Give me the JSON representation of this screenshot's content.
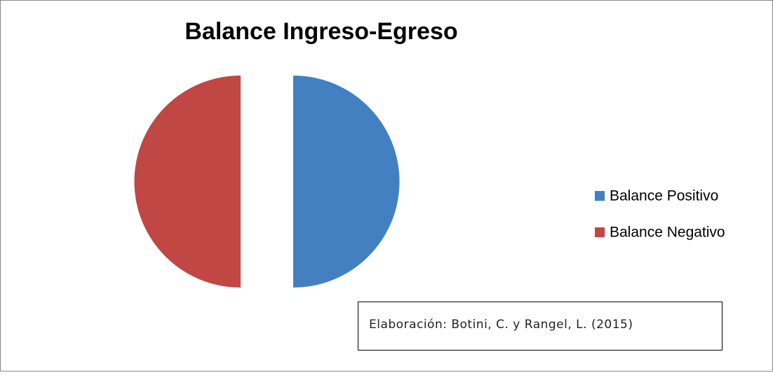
{
  "chart_data": {
    "type": "pie",
    "title": "Balance Ingreso-Egreso",
    "categories": [
      "Balance Positivo",
      "Balance Negativo"
    ],
    "values": [
      50,
      50
    ],
    "colors": [
      "#4280c2",
      "#c04744"
    ],
    "exploded": true,
    "legend": "right",
    "annotation": "Elaboración: Botini, C. y Rangel, L. (2015)"
  }
}
